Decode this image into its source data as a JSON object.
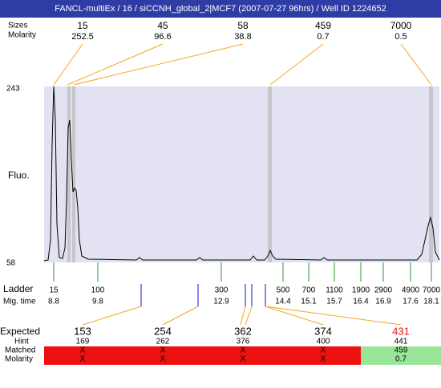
{
  "header": {
    "title": "FANCL-multiEx / 16 / siCCNH_global_2|MCF7 (2007-07-27 96hrs) / Well ID 1224652"
  },
  "peak_table": {
    "labels": [
      "Sizes",
      "Molarity"
    ],
    "peaks": [
      {
        "size": "15",
        "molarity": "252.5"
      },
      {
        "size": "45",
        "molarity": "96.6"
      },
      {
        "size": "58",
        "molarity": "38.8"
      },
      {
        "size": "459",
        "molarity": "0.7"
      },
      {
        "size": "7000",
        "molarity": "0.5"
      }
    ]
  },
  "y_axis": {
    "label": "Fluo.",
    "max": "243",
    "min": "58"
  },
  "ladder": {
    "label": "Ladder",
    "time_label": "Mig. time",
    "sizes": [
      "15",
      "100",
      "300",
      "500",
      "700",
      "1100",
      "1900",
      "2900",
      "4900",
      "7000"
    ],
    "times": [
      "8.8",
      "9.8",
      "12.9",
      "14.4",
      "15.1",
      "15.7",
      "16.4",
      "16.9",
      "17.6",
      "18.1"
    ]
  },
  "expected_table": {
    "labels": {
      "expected": "Expected",
      "hint": "Hint",
      "matched": "Matched",
      "molarity": "Molarity"
    },
    "columns": [
      {
        "expected": "153",
        "hint": "169",
        "matched": "X",
        "molarity": "X"
      },
      {
        "expected": "254",
        "hint": "262",
        "matched": "X",
        "molarity": "X"
      },
      {
        "expected": "362",
        "hint": "376",
        "matched": "X",
        "molarity": "X"
      },
      {
        "expected": "374",
        "hint": "400",
        "matched": "X",
        "molarity": "X"
      },
      {
        "expected": "431",
        "hint": "441",
        "matched": "459",
        "molarity": "0.7"
      }
    ]
  }
}
